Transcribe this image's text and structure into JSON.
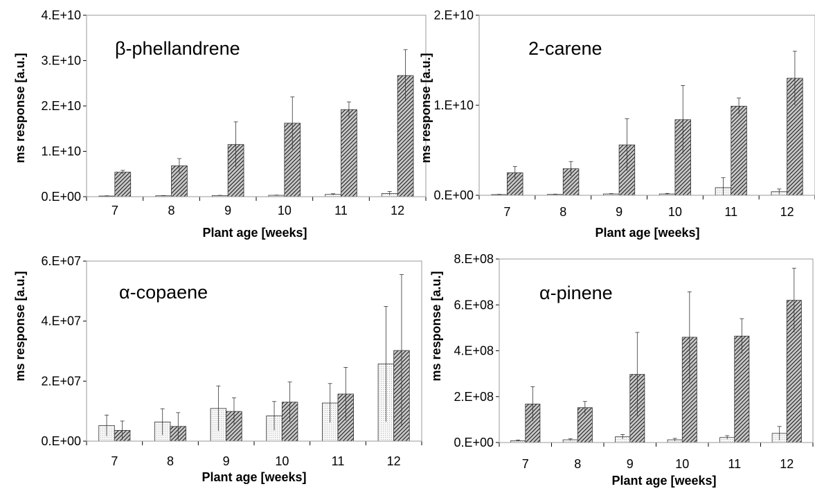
{
  "chart_data": [
    {
      "type": "bar",
      "title": "β-phellandrene",
      "xlabel": "Plant age [weeks]",
      "ylabel": "ms response [a.u.]",
      "categories": [
        "7",
        "8",
        "9",
        "10",
        "11",
        "12"
      ],
      "ylim": [
        0,
        40000000000
      ],
      "yticks": [
        0,
        10000000000,
        20000000000,
        30000000000,
        40000000000
      ],
      "ytick_labels": [
        "0.E+00",
        "1.E+10",
        "2.E+10",
        "3.E+10",
        "4.E+10"
      ],
      "grid": false,
      "series": [
        {
          "values": [
            150000000,
            200000000,
            250000000,
            300000000,
            500000000,
            700000000
          ],
          "errors": [
            50000000,
            50000000,
            50000000,
            50000000,
            150000000,
            450000000
          ],
          "pattern": "light-dotted"
        },
        {
          "values": [
            5400000000,
            6800000000,
            11500000000,
            16200000000,
            19200000000,
            26700000000
          ],
          "errors": [
            400000000,
            1600000000,
            5000000000,
            5800000000,
            1700000000,
            5700000000
          ],
          "pattern": "dark-hatched"
        }
      ]
    },
    {
      "type": "bar",
      "title": "2-carene",
      "xlabel": "Plant age [weeks]",
      "ylabel": "ms response [a.u.]",
      "categories": [
        "7",
        "8",
        "9",
        "10",
        "11",
        "12"
      ],
      "ylim": [
        0,
        20000000000
      ],
      "yticks": [
        0,
        10000000000,
        20000000000
      ],
      "ytick_labels": [
        "0.E+00",
        "1.E+10",
        "2.E+10"
      ],
      "grid": false,
      "series": [
        {
          "values": [
            80000000,
            100000000,
            150000000,
            150000000,
            850000000,
            400000000
          ],
          "errors": [
            30000000,
            30000000,
            40000000,
            60000000,
            1100000000,
            300000000
          ],
          "pattern": "light-dotted"
        },
        {
          "values": [
            2500000000,
            2950000000,
            5600000000,
            8400000000,
            9900000000,
            13000000000
          ],
          "errors": [
            700000000,
            800000000,
            2900000000,
            3800000000,
            900000000,
            3000000000
          ],
          "pattern": "dark-hatched"
        }
      ]
    },
    {
      "type": "bar",
      "title": "α-copaene",
      "xlabel": "Plant age [weeks]",
      "ylabel": "ms response [a.u.]",
      "categories": [
        "7",
        "8",
        "9",
        "10",
        "11",
        "12"
      ],
      "ylim": [
        0,
        60000000
      ],
      "yticks": [
        0,
        20000000,
        40000000,
        60000000
      ],
      "ytick_labels": [
        "0.E+00",
        "2.E+07",
        "4.E+07",
        "6.E+07"
      ],
      "grid": false,
      "series": [
        {
          "values": [
            5200000,
            6400000,
            10900000,
            8400000,
            12700000,
            25700000
          ],
          "errors": [
            3500000,
            4400000,
            7500000,
            4800000,
            6500000,
            19200000
          ],
          "pattern": "light-dotted"
        },
        {
          "values": [
            3600000,
            4900000,
            9900000,
            13000000,
            15700000,
            30200000
          ],
          "errors": [
            3100000,
            4600000,
            4500000,
            6700000,
            8900000,
            25300000
          ],
          "pattern": "dark-hatched"
        }
      ]
    },
    {
      "type": "bar",
      "title": "α-pinene",
      "xlabel": "Plant age [weeks]",
      "ylabel": "ms response [a.u.]",
      "categories": [
        "7",
        "8",
        "9",
        "10",
        "11",
        "12"
      ],
      "ylim": [
        0,
        800000000
      ],
      "yticks": [
        0,
        200000000,
        400000000,
        600000000,
        800000000
      ],
      "ytick_labels": [
        "0.E+00",
        "2.E+08",
        "4.E+08",
        "6.E+08",
        "8.E+08"
      ],
      "grid": false,
      "series": [
        {
          "values": [
            8000000,
            12000000,
            25000000,
            12000000,
            22000000,
            40000000
          ],
          "errors": [
            3000000,
            4000000,
            10000000,
            6000000,
            8000000,
            30000000
          ],
          "pattern": "light-dotted"
        },
        {
          "values": [
            168000000,
            152000000,
            297000000,
            459000000,
            464000000,
            620000000
          ],
          "errors": [
            75000000,
            27000000,
            183000000,
            198000000,
            76000000,
            140000000
          ],
          "pattern": "dark-hatched"
        }
      ]
    }
  ]
}
